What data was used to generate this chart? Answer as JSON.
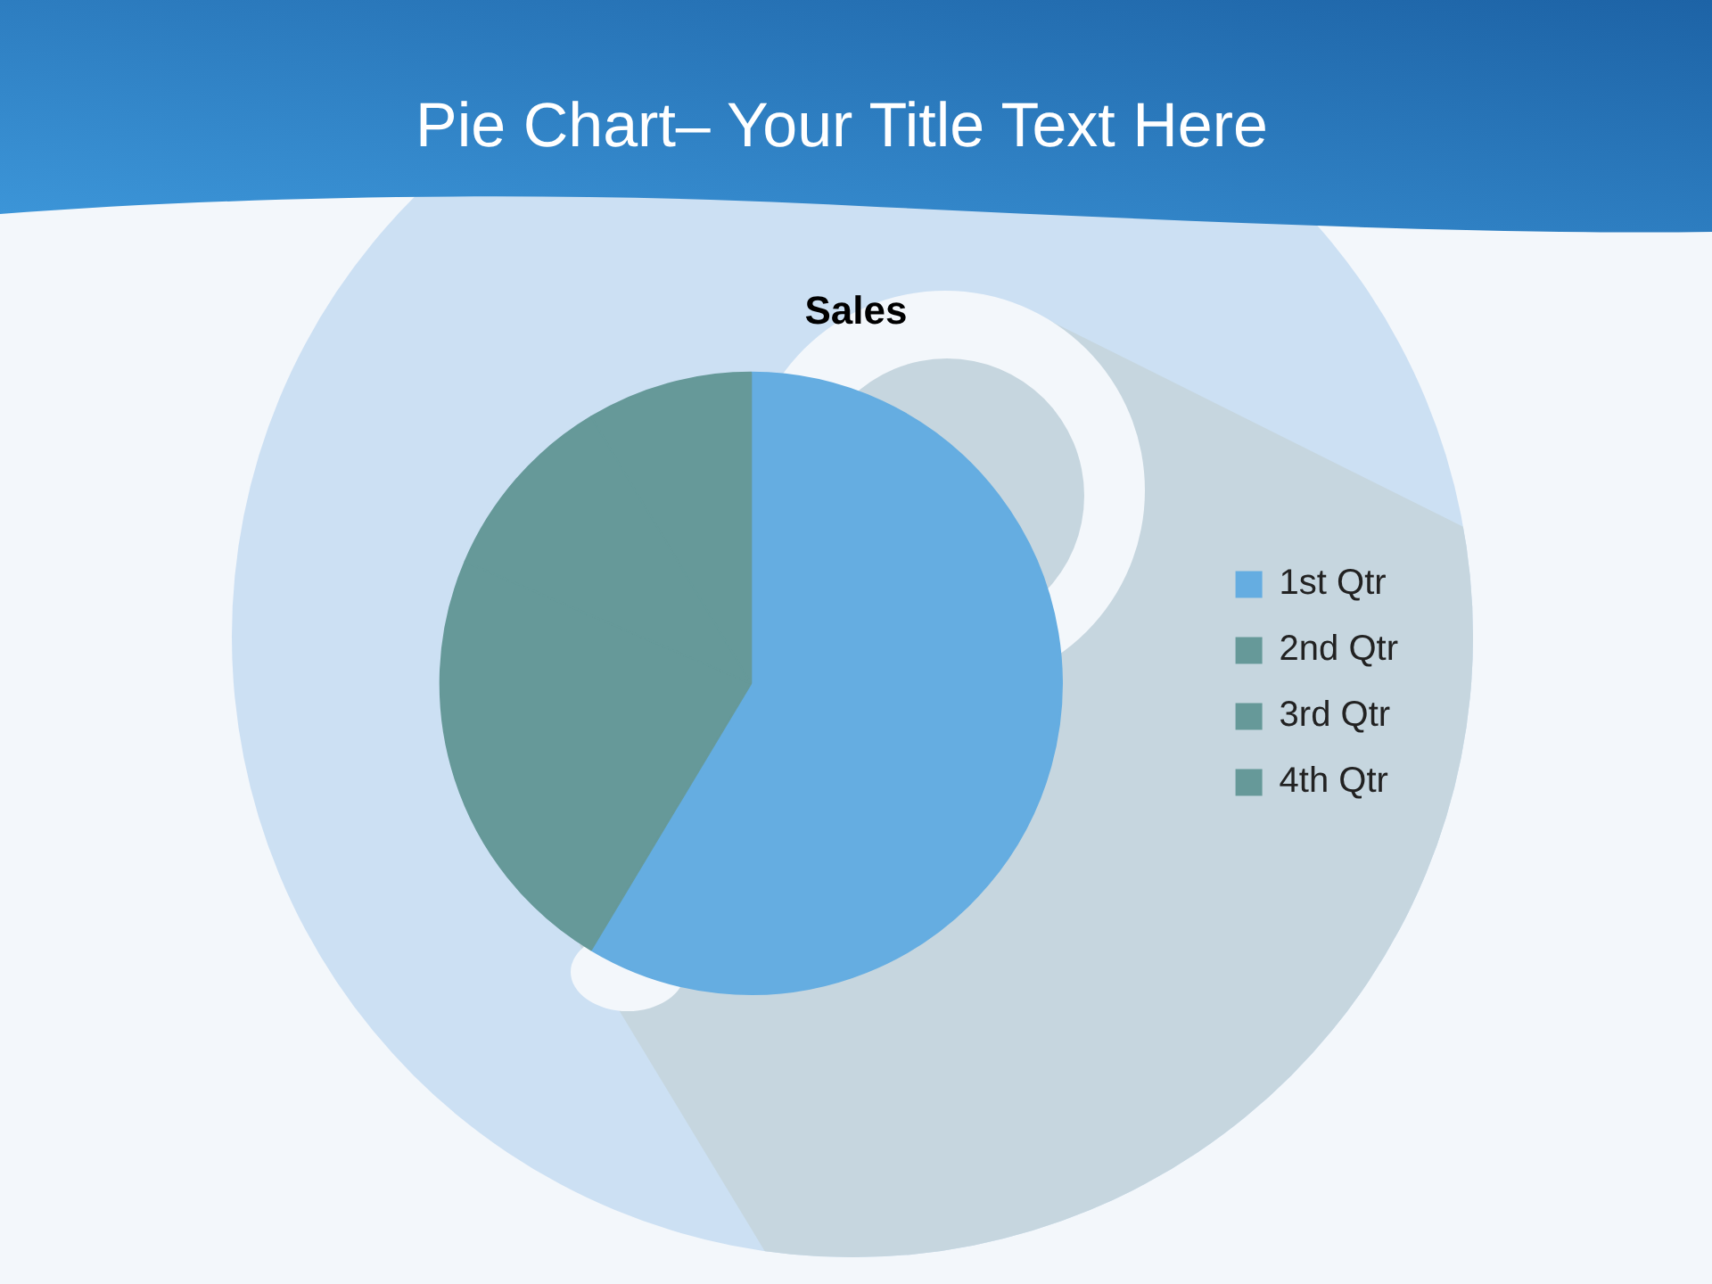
{
  "chart_data": {
    "type": "pie",
    "title": "Pie Chart– Your Title Text Here",
    "subtitle": "Sales",
    "categories": [
      "1st Qtr",
      "2nd Qtr",
      "3rd Qtr",
      "4th Qtr"
    ],
    "values": [
      58.6,
      22.8,
      10.0,
      8.6
    ],
    "colors": [
      "#65ade1",
      "#669999",
      "#669999",
      "#669999"
    ],
    "legend": "right"
  }
}
